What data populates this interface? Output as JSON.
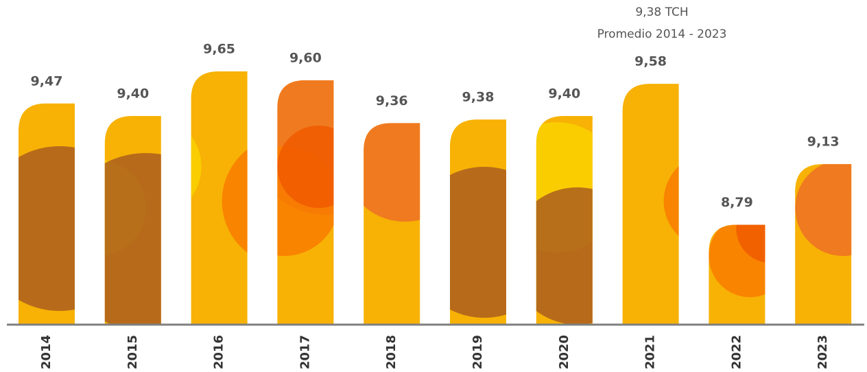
{
  "chart_data": {
    "type": "bar",
    "annotation": {
      "value": "9,38 TCH",
      "label": "Promedio 2014 - 2023"
    },
    "categories": [
      "2014",
      "2015",
      "2016",
      "2017",
      "2018",
      "2019",
      "2020",
      "2021",
      "2022",
      "2023"
    ],
    "values": [
      9.47,
      9.4,
      9.65,
      9.6,
      9.36,
      9.38,
      9.4,
      9.58,
      8.79,
      9.13
    ],
    "value_labels": [
      "9,47",
      "9,40",
      "9,65",
      "9,60",
      "9,36",
      "9,38",
      "9,40",
      "9,58",
      "8,79",
      "9,13"
    ],
    "color": "#F7B205",
    "ylim": [
      8.23,
      9.7
    ]
  }
}
